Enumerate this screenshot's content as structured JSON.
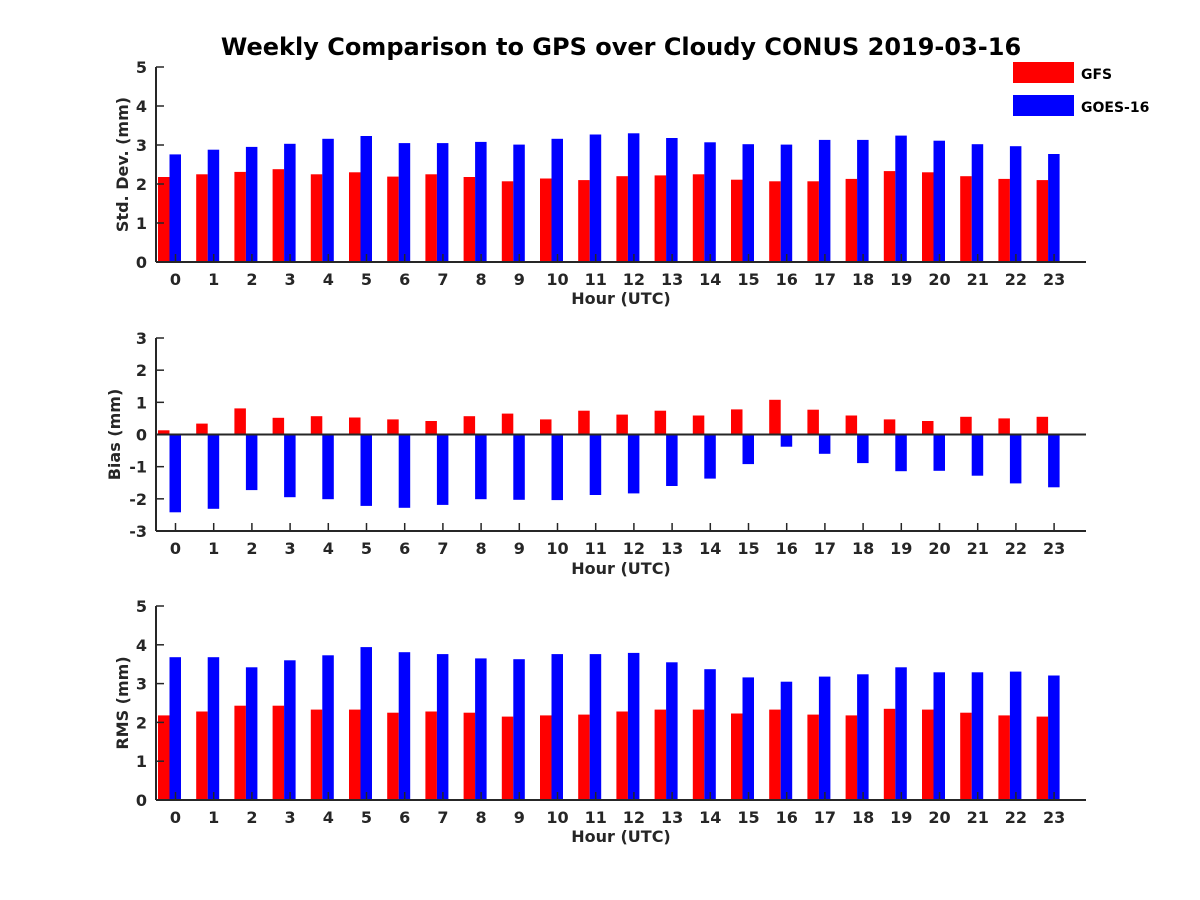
{
  "title": "Weekly Comparison to GPS over Cloudy CONUS 2019-03-16",
  "legend": {
    "placement": "top-right",
    "entries": [
      {
        "label": "GFS",
        "color": "#ff0000"
      },
      {
        "label": "GOES-16",
        "color": "#0000ff"
      }
    ]
  },
  "chart_data": [
    {
      "type": "bar",
      "xlabel": "Hour (UTC)",
      "ylabel": "Std. Dev. (mm)",
      "ylim": [
        0,
        5
      ],
      "yticks": [
        0,
        1,
        2,
        3,
        4,
        5
      ],
      "categories": [
        "0",
        "1",
        "2",
        "3",
        "4",
        "5",
        "6",
        "7",
        "8",
        "9",
        "10",
        "11",
        "12",
        "13",
        "14",
        "15",
        "16",
        "17",
        "18",
        "19",
        "20",
        "21",
        "22",
        "23"
      ],
      "series": [
        {
          "name": "GFS",
          "color": "#ff0000",
          "values": [
            2.18,
            2.25,
            2.31,
            2.38,
            2.25,
            2.3,
            2.19,
            2.25,
            2.18,
            2.07,
            2.14,
            2.1,
            2.2,
            2.22,
            2.25,
            2.11,
            2.07,
            2.07,
            2.13,
            2.33,
            2.3,
            2.2,
            2.13,
            2.1
          ]
        },
        {
          "name": "GOES-16",
          "color": "#0000ff",
          "values": [
            2.76,
            2.88,
            2.95,
            3.03,
            3.16,
            3.23,
            3.05,
            3.05,
            3.08,
            3.01,
            3.16,
            3.27,
            3.3,
            3.18,
            3.07,
            3.02,
            3.01,
            3.13,
            3.13,
            3.24,
            3.11,
            3.02,
            2.97,
            2.77
          ]
        }
      ]
    },
    {
      "type": "bar",
      "xlabel": "Hour (UTC)",
      "ylabel": "Bias (mm)",
      "ylim": [
        -3,
        3
      ],
      "yticks": [
        -3,
        -2,
        -1,
        0,
        1,
        2,
        3
      ],
      "categories": [
        "0",
        "1",
        "2",
        "3",
        "4",
        "5",
        "6",
        "7",
        "8",
        "9",
        "10",
        "11",
        "12",
        "13",
        "14",
        "15",
        "16",
        "17",
        "18",
        "19",
        "20",
        "21",
        "22",
        "23"
      ],
      "series": [
        {
          "name": "GFS",
          "color": "#ff0000",
          "values": [
            0.13,
            0.34,
            0.81,
            0.52,
            0.57,
            0.53,
            0.47,
            0.42,
            0.57,
            0.65,
            0.47,
            0.74,
            0.62,
            0.74,
            0.59,
            0.78,
            1.08,
            0.77,
            0.59,
            0.47,
            0.42,
            0.55,
            0.5,
            0.55
          ]
        },
        {
          "name": "GOES-16",
          "color": "#0000ff",
          "values": [
            -2.42,
            -2.31,
            -1.73,
            -1.95,
            -2.01,
            -2.22,
            -2.28,
            -2.19,
            -2.01,
            -2.03,
            -2.04,
            -1.88,
            -1.83,
            -1.6,
            -1.37,
            -0.92,
            -0.38,
            -0.6,
            -0.89,
            -1.14,
            -1.13,
            -1.28,
            -1.52,
            -1.64
          ]
        }
      ]
    },
    {
      "type": "bar",
      "xlabel": "Hour (UTC)",
      "ylabel": "RMS (mm)",
      "ylim": [
        0,
        5
      ],
      "yticks": [
        0,
        1,
        2,
        3,
        4,
        5
      ],
      "categories": [
        "0",
        "1",
        "2",
        "3",
        "4",
        "5",
        "6",
        "7",
        "8",
        "9",
        "10",
        "11",
        "12",
        "13",
        "14",
        "15",
        "16",
        "17",
        "18",
        "19",
        "20",
        "21",
        "22",
        "23"
      ],
      "series": [
        {
          "name": "GFS",
          "color": "#ff0000",
          "values": [
            2.18,
            2.28,
            2.43,
            2.43,
            2.33,
            2.33,
            2.25,
            2.28,
            2.25,
            2.15,
            2.18,
            2.2,
            2.28,
            2.33,
            2.33,
            2.23,
            2.33,
            2.2,
            2.18,
            2.35,
            2.33,
            2.25,
            2.18,
            2.15
          ]
        },
        {
          "name": "GOES-16",
          "color": "#0000ff",
          "values": [
            3.68,
            3.68,
            3.42,
            3.6,
            3.73,
            3.94,
            3.81,
            3.76,
            3.65,
            3.63,
            3.76,
            3.76,
            3.79,
            3.55,
            3.37,
            3.16,
            3.05,
            3.18,
            3.24,
            3.42,
            3.29,
            3.29,
            3.31,
            3.21
          ]
        }
      ]
    }
  ]
}
